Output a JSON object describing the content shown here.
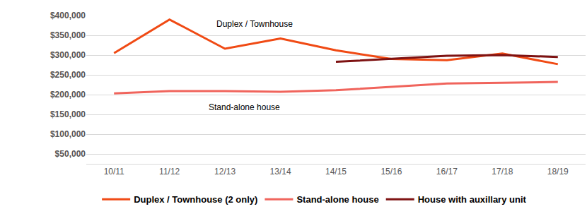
{
  "chart_data": {
    "type": "line",
    "categories": [
      "10/11",
      "11/12",
      "12/13",
      "13/14",
      "14/15",
      "15/16",
      "16/17",
      "17/18",
      "18/19"
    ],
    "series": [
      {
        "name": "Duplex / Townhouse (2 only)",
        "color": "#f04a14",
        "values": [
          305000,
          390000,
          316000,
          342000,
          312000,
          290000,
          287000,
          304000,
          277000
        ]
      },
      {
        "name": "Stand-alone house",
        "color": "#f0645c",
        "values": [
          203000,
          209000,
          209000,
          207000,
          211000,
          220000,
          228000,
          230000,
          232000
        ]
      },
      {
        "name": "House with auxillary unit",
        "color": "#7e1212",
        "values": [
          null,
          null,
          null,
          null,
          283000,
          290000,
          298000,
          300000,
          295000
        ]
      }
    ],
    "annotations": [
      "Duplex / Townhouse",
      "Stand-alone house"
    ],
    "ylim": [
      25000,
      400000
    ],
    "yticks": [
      {
        "value": 50000,
        "label": "$50,000"
      },
      {
        "value": 100000,
        "label": "$100,000"
      },
      {
        "value": 150000,
        "label": "$150,000"
      },
      {
        "value": 200000,
        "label": "$200,000"
      },
      {
        "value": 250000,
        "label": "$250,000"
      },
      {
        "value": 300000,
        "label": "$300,000"
      },
      {
        "value": 350000,
        "label": "$350,000"
      },
      {
        "value": 400000,
        "label": "$400,000"
      }
    ],
    "grid": true,
    "legend": "bottom"
  }
}
